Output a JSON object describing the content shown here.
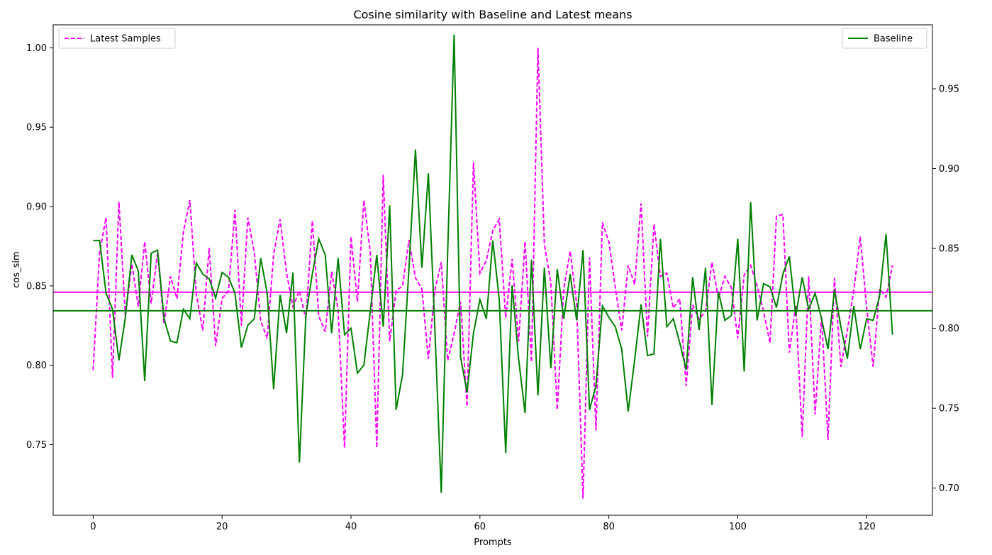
{
  "chart_data": {
    "type": "line",
    "title": "Cosine similarity with Baseline and Latest means",
    "xlabel": "Prompts",
    "ylabel": "cos_sim",
    "xlim": [
      -6.2,
      130.2
    ],
    "ylim_left": [
      0.7055,
      1.0145
    ],
    "ylim_right": [
      0.683,
      0.99
    ],
    "x_ticks": [
      0,
      20,
      40,
      60,
      80,
      100,
      120
    ],
    "y_ticks_left": [
      0.75,
      0.8,
      0.85,
      0.9,
      0.95,
      1.0
    ],
    "y_ticks_right": [
      0.7,
      0.75,
      0.8,
      0.85,
      0.9,
      0.95
    ],
    "series": [
      {
        "name": "Latest Samples",
        "axis": "left",
        "color": "#ff00ff",
        "style": "dashed",
        "mean": 0.846,
        "values": [
          0.797,
          0.871,
          0.893,
          0.792,
          0.903,
          0.831,
          0.864,
          0.837,
          0.878,
          0.839,
          0.871,
          0.826,
          0.856,
          0.842,
          0.884,
          0.904,
          0.845,
          0.822,
          0.874,
          0.812,
          0.842,
          0.847,
          0.898,
          0.825,
          0.893,
          0.871,
          0.828,
          0.817,
          0.87,
          0.892,
          0.858,
          0.837,
          0.847,
          0.829,
          0.891,
          0.831,
          0.821,
          0.859,
          0.835,
          0.748,
          0.881,
          0.84,
          0.904,
          0.871,
          0.748,
          0.92,
          0.815,
          0.847,
          0.85,
          0.879,
          0.855,
          0.848,
          0.804,
          0.847,
          0.865,
          0.803,
          0.82,
          0.84,
          0.774,
          0.928,
          0.858,
          0.866,
          0.885,
          0.892,
          0.83,
          0.867,
          0.815,
          0.878,
          0.802,
          1.0,
          0.876,
          0.852,
          0.772,
          0.848,
          0.872,
          0.839,
          0.716,
          0.868,
          0.759,
          0.89,
          0.878,
          0.849,
          0.822,
          0.863,
          0.851,
          0.902,
          0.818,
          0.889,
          0.856,
          0.858,
          0.836,
          0.842,
          0.787,
          0.838,
          0.829,
          0.834,
          0.865,
          0.842,
          0.856,
          0.849,
          0.817,
          0.857,
          0.863,
          0.85,
          0.834,
          0.814,
          0.894,
          0.895,
          0.808,
          0.838,
          0.755,
          0.856,
          0.769,
          0.831,
          0.753,
          0.855,
          0.799,
          0.822,
          0.847,
          0.881,
          0.836,
          0.799,
          0.848,
          0.843,
          0.863
        ]
      },
      {
        "name": "Baseline",
        "axis": "right",
        "color": "#008000",
        "style": "solid",
        "mean": 0.811,
        "values": [
          0.855,
          0.855,
          0.822,
          0.812,
          0.78,
          0.807,
          0.846,
          0.836,
          0.767,
          0.847,
          0.849,
          0.806,
          0.792,
          0.791,
          0.812,
          0.806,
          0.841,
          0.834,
          0.831,
          0.819,
          0.835,
          0.832,
          0.822,
          0.788,
          0.802,
          0.806,
          0.844,
          0.822,
          0.762,
          0.821,
          0.797,
          0.835,
          0.716,
          0.808,
          0.834,
          0.856,
          0.846,
          0.797,
          0.844,
          0.796,
          0.8,
          0.772,
          0.777,
          0.811,
          0.846,
          0.801,
          0.877,
          0.749,
          0.771,
          0.838,
          0.912,
          0.838,
          0.897,
          0.801,
          0.697,
          0.848,
          0.984,
          0.782,
          0.76,
          0.797,
          0.818,
          0.806,
          0.855,
          0.818,
          0.722,
          0.827,
          0.781,
          0.747,
          0.843,
          0.758,
          0.838,
          0.775,
          0.837,
          0.806,
          0.834,
          0.805,
          0.849,
          0.749,
          0.764,
          0.814,
          0.807,
          0.801,
          0.787,
          0.748,
          0.78,
          0.815,
          0.783,
          0.784,
          0.856,
          0.801,
          0.806,
          0.791,
          0.774,
          0.832,
          0.799,
          0.838,
          0.752,
          0.823,
          0.805,
          0.808,
          0.856,
          0.773,
          0.879,
          0.805,
          0.828,
          0.826,
          0.813,
          0.834,
          0.845,
          0.808,
          0.832,
          0.812,
          0.822,
          0.806,
          0.787,
          0.824,
          0.801,
          0.781,
          0.814,
          0.787,
          0.806,
          0.805,
          0.82,
          0.859,
          0.796
        ]
      }
    ],
    "legends": [
      {
        "series": "Latest Samples",
        "placement": "top-left"
      },
      {
        "series": "Baseline",
        "placement": "top-right"
      }
    ],
    "grid": false
  }
}
